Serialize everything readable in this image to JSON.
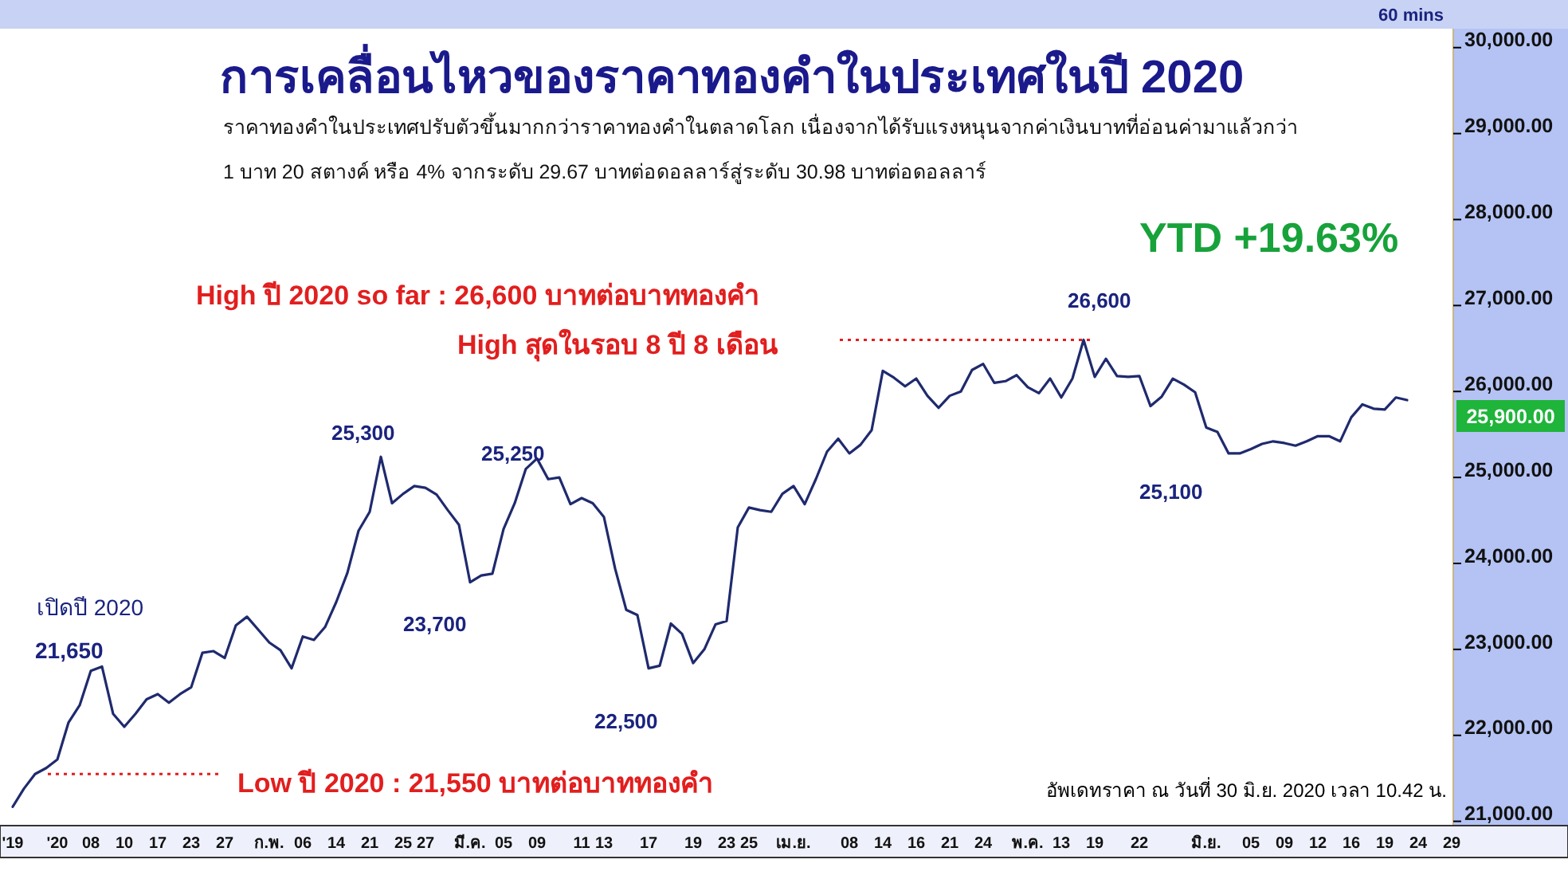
{
  "chart_data": {
    "type": "line",
    "title": "การเคลื่อนไหวของราคาทองคำในประเทศในปี 2020",
    "subtitle": "ราคาทองคำในประเทศปรับตัวขึ้นมากกว่าราคาทองคำในตลาดโลก  เนื่องจากได้รับแรงหนุนจากค่าเงินบาทที่อ่อนค่ามาแล้วกว่า\n1 บาท 20 สตางค์ หรือ 4% จากระดับ 29.67 บาทต่อดอลลาร์สู่ระดับ 30.98 บาทต่อดอลลาร์",
    "annotations": [
      "60 mins",
      "YTD +19.63%",
      "High ปี 2020 so far : 26,600 บาทต่อบาททองคำ",
      "High สุดในรอบ 8 ปี 8 เดือน",
      "Low ปี 2020 : 21,550 บาทต่อบาททองคำ",
      "เปิดปี 2020",
      "21,650",
      "25,300",
      "25,250",
      "23,700",
      "22,500",
      "26,600",
      "25,100",
      "อัพเดทราคา ณ วันที่ 30 มิ.ย. 2020 เวลา  10.42 น.",
      "25,900.00"
    ],
    "categories": [
      "'19",
      null,
      null,
      null,
      "'20",
      null,
      null,
      "08",
      null,
      null,
      "10",
      null,
      null,
      "17",
      null,
      null,
      "23",
      null,
      null,
      "27",
      null,
      null,
      null,
      "ก.พ.",
      null,
      null,
      "06",
      null,
      null,
      "14",
      null,
      null,
      "21",
      null,
      null,
      "25",
      null,
      "27",
      null,
      null,
      null,
      "มี.ค.",
      null,
      null,
      "05",
      null,
      null,
      "09",
      null,
      null,
      null,
      "11",
      null,
      "13",
      null,
      null,
      null,
      "17",
      null,
      null,
      null,
      "19",
      null,
      null,
      "23",
      null,
      "25",
      null,
      null,
      null,
      "เม.ย.",
      null,
      null,
      null,
      null,
      "08",
      null,
      null,
      "14",
      null,
      null,
      "16",
      null,
      null,
      "21",
      null,
      null,
      "24",
      null,
      null,
      null,
      "พ.ค.",
      null,
      null,
      "13",
      null,
      null,
      "19",
      null,
      null,
      null,
      "22",
      null,
      null,
      null,
      null,
      null,
      "มิ.ย.",
      null,
      null,
      null,
      "05",
      null,
      null,
      "09",
      null,
      null,
      "12",
      null,
      null,
      "16",
      null,
      null,
      "19",
      null,
      null,
      "24",
      null,
      null,
      "29"
    ],
    "series": [
      {
        "color": "#1f2a6e",
        "values": [
          21170,
          21380,
          21550,
          21620,
          21720,
          22150,
          22350,
          22750,
          22800,
          22250,
          22100,
          22250,
          22420,
          22480,
          22380,
          22480,
          22560,
          22960,
          22980,
          22900,
          23280,
          23380,
          23230,
          23080,
          22990,
          22780,
          23150,
          23110,
          23260,
          23550,
          23890,
          24380,
          24600,
          25240,
          24700,
          24810,
          24900,
          24880,
          24800,
          24620,
          24450,
          23780,
          23860,
          23880,
          24400,
          24700,
          25100,
          25220,
          24980,
          25000,
          24690,
          24760,
          24700,
          24540,
          23940,
          23460,
          23400,
          22780,
          22810,
          23300,
          23180,
          22840,
          23000,
          23290,
          23330,
          24420,
          24650,
          24620,
          24600,
          24810,
          24900,
          24690,
          24980,
          25300,
          25450,
          25280,
          25380,
          25550,
          26240,
          26160,
          26060,
          26150,
          25950,
          25810,
          25950,
          26000,
          26250,
          26320,
          26100,
          26120,
          26190,
          26050,
          25980,
          26150,
          25930,
          26150,
          26600,
          26170,
          26380,
          26180,
          26170,
          26180,
          25830,
          25940,
          26150,
          26080,
          25990,
          25580,
          25530,
          25280,
          25280,
          25330,
          25390,
          25420,
          25400,
          25370,
          25420,
          25480,
          25480,
          25420,
          25700,
          25850,
          25800,
          25790,
          25930,
          25900,
          null,
          null,
          null,
          null
        ]
      }
    ],
    "ylim": [
      20950,
      30220
    ],
    "yticks": [
      {
        "value": 21000,
        "label": "21,000.00"
      },
      {
        "value": 22000,
        "label": "22,000.00"
      },
      {
        "value": 23000,
        "label": "23,000.00"
      },
      {
        "value": 24000,
        "label": "24,000.00"
      },
      {
        "value": 25000,
        "label": "25,000.00"
      },
      {
        "value": 26000,
        "label": "26,000.00"
      },
      {
        "value": 27000,
        "label": "27,000.00"
      },
      {
        "value": 28000,
        "label": "28,000.00"
      },
      {
        "value": 29000,
        "label": "29,000.00"
      },
      {
        "value": 30000,
        "label": "30,000.00"
      }
    ],
    "ref_lines": [
      {
        "axis": "y",
        "value": 26600,
        "color": "#e21e1e",
        "line_style": "dotted"
      },
      {
        "axis": "y",
        "value": 21550,
        "color": "#e21e1e",
        "line_style": "dotted"
      }
    ]
  }
}
